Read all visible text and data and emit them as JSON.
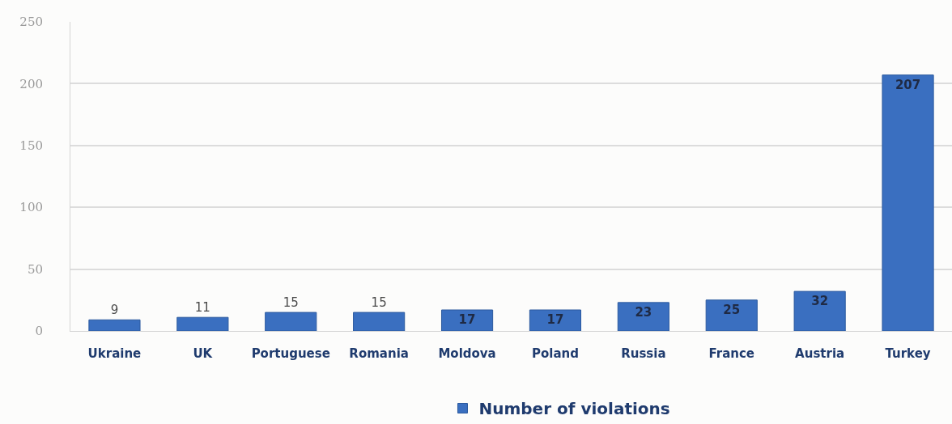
{
  "chart_data": {
    "type": "bar",
    "categories": [
      "Ukraine",
      "UK",
      "Portuguese",
      "Romania",
      "Moldova",
      "Poland",
      "Russia",
      "France",
      "Austria",
      "Turkey"
    ],
    "series": [
      {
        "name": "Number of violations",
        "color": "#3a6fc0",
        "values": [
          9,
          11,
          15,
          15,
          17,
          17,
          23,
          25,
          32,
          207
        ]
      }
    ],
    "ylim": [
      0,
      250
    ],
    "yticks": [
      0,
      50,
      100,
      150,
      200,
      250
    ],
    "grid": "y",
    "legend": "bottom",
    "data_labels": true
  }
}
